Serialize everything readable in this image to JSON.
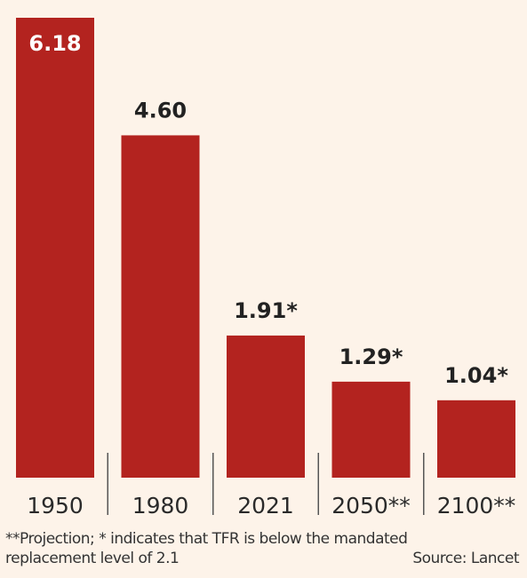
{
  "chart_data": {
    "type": "bar",
    "categories": [
      "1950",
      "1980",
      "2021",
      "2050**",
      "2100**"
    ],
    "values": [
      6.18,
      4.6,
      1.91,
      1.29,
      1.04
    ],
    "value_labels": [
      "6.18",
      "4.60",
      "1.91*",
      "1.29*",
      "1.04*"
    ],
    "title": "",
    "xlabel": "",
    "ylabel": "",
    "ylim": [
      0,
      6.18
    ],
    "grid": false,
    "legend": "none",
    "bar_color": "#b3231f"
  },
  "footnote": {
    "line1": "**Projection; * indicates that TFR is below the mandated",
    "line2": "replacement level of 2.1",
    "source": "Source: Lancet"
  }
}
